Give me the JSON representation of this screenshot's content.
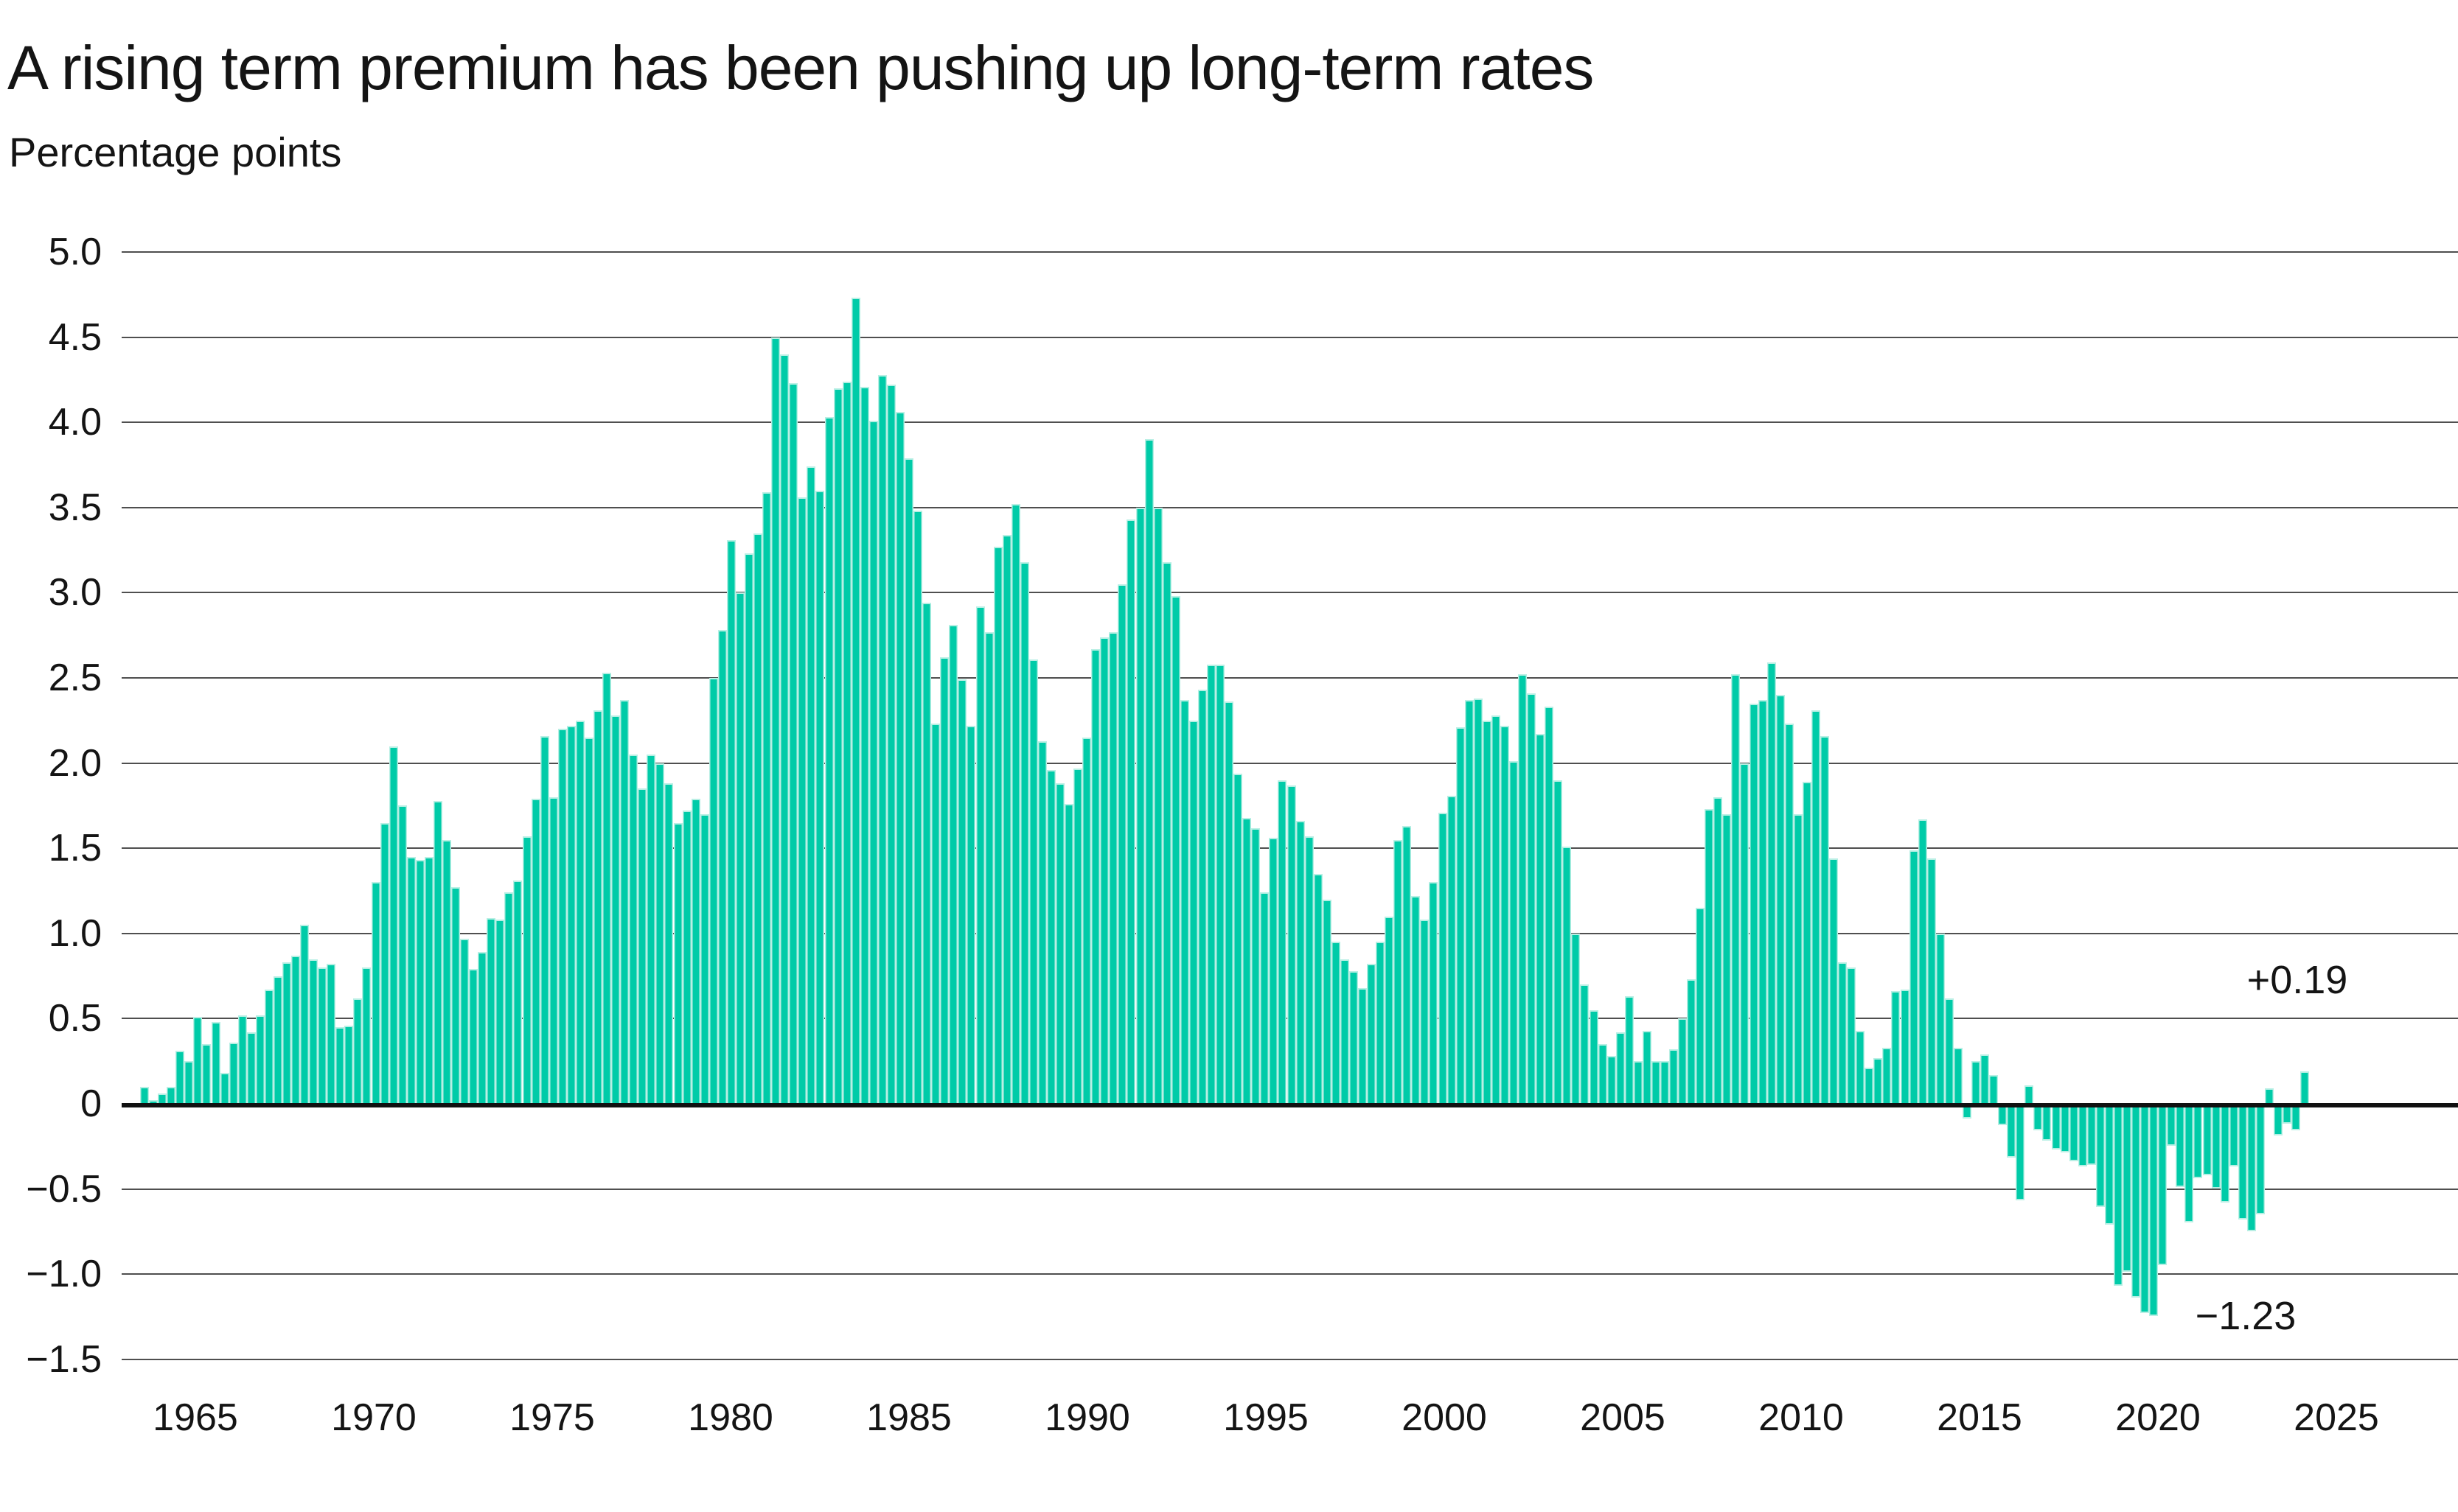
{
  "header": {
    "title": "A rising term premium has been pushing up long-term rates",
    "subtitle": "Percentage points"
  },
  "annotations": {
    "latest_label": "+0.19",
    "min_label": "−1.23"
  },
  "colors": {
    "bar": "#00cba8",
    "bar_edge": "#b8efe4",
    "gridline": "#4f4f4f",
    "zero_line": "#111111",
    "text": "#141414",
    "background": "#ffffff"
  },
  "y_axis": {
    "ticks": [
      {
        "label": "5.0",
        "value": 5.0
      },
      {
        "label": "4.5",
        "value": 4.5
      },
      {
        "label": "4.0",
        "value": 4.0
      },
      {
        "label": "3.5",
        "value": 3.5
      },
      {
        "label": "3.0",
        "value": 3.0
      },
      {
        "label": "2.5",
        "value": 2.5
      },
      {
        "label": "2.0",
        "value": 2.0
      },
      {
        "label": "1.5",
        "value": 1.5
      },
      {
        "label": "1.0",
        "value": 1.0
      },
      {
        "label": "0.5",
        "value": 0.5
      },
      {
        "label": "0",
        "value": 0.0
      },
      {
        "label": "−0.5",
        "value": -0.5
      },
      {
        "label": "−1.0",
        "value": -1.0
      },
      {
        "label": "−1.5",
        "value": -1.5
      }
    ]
  },
  "x_axis": {
    "ticks": [
      {
        "label": "1965",
        "year": 1965
      },
      {
        "label": "1970",
        "year": 1970
      },
      {
        "label": "1975",
        "year": 1975
      },
      {
        "label": "1980",
        "year": 1980
      },
      {
        "label": "1985",
        "year": 1985
      },
      {
        "label": "1990",
        "year": 1990
      },
      {
        "label": "1995",
        "year": 1995
      },
      {
        "label": "2000",
        "year": 2000
      },
      {
        "label": "2005",
        "year": 2005
      },
      {
        "label": "2010",
        "year": 2010
      },
      {
        "label": "2015",
        "year": 2015
      },
      {
        "label": "2020",
        "year": 2020
      },
      {
        "label": "2025",
        "year": 2025
      }
    ]
  },
  "chart_data": {
    "type": "bar",
    "title": "A rising term premium has been pushing up long-term rates",
    "ylabel": "Percentage points",
    "unit": "percentage points",
    "frequency": "quarterly",
    "start_period": "1963 Q3",
    "end_period": "2024 Q2",
    "x_start_year": 1963.5,
    "x_step_years": 0.25,
    "ylim": [
      -1.5,
      5.0
    ],
    "grid": true,
    "latest_value": 0.19,
    "min_value": -1.23,
    "values": [
      0.1,
      0.02,
      0.06,
      0.1,
      0.31,
      0.25,
      0.51,
      0.35,
      0.48,
      0.18,
      0.36,
      0.52,
      0.42,
      0.52,
      0.67,
      0.75,
      0.83,
      0.87,
      1.05,
      0.85,
      0.8,
      0.82,
      0.45,
      0.46,
      0.62,
      0.8,
      1.3,
      1.65,
      2.1,
      1.75,
      1.45,
      1.43,
      1.45,
      1.78,
      1.55,
      1.27,
      0.97,
      0.79,
      0.89,
      1.09,
      1.08,
      1.24,
      1.31,
      1.57,
      1.79,
      2.16,
      1.8,
      2.2,
      2.22,
      2.25,
      2.15,
      2.31,
      2.53,
      2.28,
      2.37,
      2.05,
      1.85,
      2.05,
      2.0,
      1.88,
      1.65,
      1.72,
      1.79,
      1.7,
      2.5,
      2.78,
      3.31,
      3.0,
      3.23,
      3.35,
      3.59,
      4.5,
      4.4,
      4.23,
      3.56,
      3.74,
      3.6,
      4.03,
      4.2,
      4.24,
      4.73,
      4.21,
      4.01,
      4.28,
      4.22,
      4.06,
      3.79,
      3.48,
      2.94,
      2.23,
      2.62,
      2.81,
      2.49,
      2.22,
      2.92,
      2.77,
      3.27,
      3.34,
      3.52,
      3.18,
      2.61,
      2.13,
      1.96,
      1.88,
      1.76,
      1.97,
      2.15,
      2.67,
      2.74,
      2.77,
      3.05,
      3.43,
      3.5,
      3.9,
      3.5,
      3.18,
      2.98,
      2.37,
      2.25,
      2.43,
      2.58,
      2.58,
      2.36,
      1.94,
      1.68,
      1.62,
      1.24,
      1.56,
      1.9,
      1.87,
      1.66,
      1.57,
      1.35,
      1.2,
      0.95,
      0.85,
      0.78,
      0.68,
      0.82,
      0.95,
      1.1,
      1.55,
      1.63,
      1.22,
      1.08,
      1.3,
      1.71,
      1.81,
      2.21,
      2.37,
      2.38,
      2.25,
      2.28,
      2.22,
      2.01,
      2.52,
      2.41,
      2.17,
      2.33,
      1.9,
      1.51,
      1.0,
      0.7,
      0.55,
      0.35,
      0.28,
      0.42,
      0.63,
      0.25,
      0.43,
      0.25,
      0.25,
      0.32,
      0.5,
      0.73,
      1.15,
      1.73,
      1.8,
      1.7,
      2.52,
      2.0,
      2.35,
      2.37,
      2.59,
      2.4,
      2.23,
      1.7,
      1.89,
      2.31,
      2.16,
      1.44,
      0.83,
      0.8,
      0.43,
      0.21,
      0.27,
      0.33,
      0.66,
      0.67,
      1.49,
      1.67,
      1.44,
      1.0,
      0.62,
      0.33,
      -0.07,
      0.25,
      0.29,
      0.17,
      -0.11,
      -0.3,
      -0.55,
      0.11,
      -0.14,
      -0.2,
      -0.25,
      -0.27,
      -0.32,
      -0.35,
      -0.34,
      -0.59,
      -0.69,
      -1.05,
      -0.97,
      -1.12,
      -1.21,
      -1.23,
      -0.93,
      -0.23,
      -0.47,
      -0.68,
      -0.42,
      -0.4,
      -0.48,
      -0.56,
      -0.35,
      -0.66,
      -0.73,
      -0.63,
      0.09,
      -0.17,
      -0.1,
      -0.14,
      0.19
    ]
  }
}
